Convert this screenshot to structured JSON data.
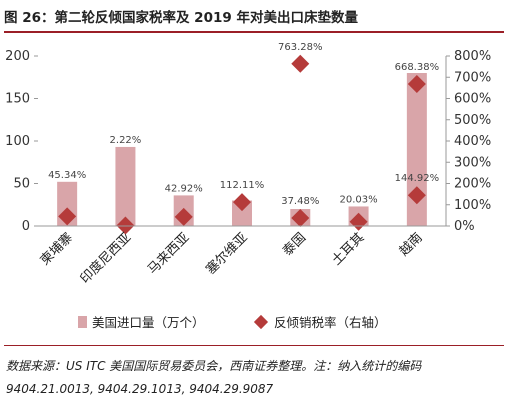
{
  "title": "图 26：第二轮反倾国家税率及 2019 年对美出口床垫数量",
  "chart_data": {
    "type": "bar",
    "categories": [
      "柬埔寨",
      "印度尼西亚",
      "马来西亚",
      "塞尔维亚",
      "泰国",
      "土耳其",
      "越南"
    ],
    "series": [
      {
        "name": "美国进口量（万个）",
        "type": "bar",
        "axis": "left",
        "values": [
          52,
          93,
          36,
          30,
          20,
          23,
          180
        ]
      },
      {
        "name": "反倾销税率（右轴）",
        "type": "scatter",
        "axis": "right",
        "values": [
          45.34,
          2.22,
          42.92,
          112.11,
          37.48,
          20.03,
          668.38
        ]
      }
    ],
    "data_labels": [
      "45.34%",
      "2.22%",
      "42.92%",
      "112.11%",
      "37.48%",
      "20.03%",
      "668.38%"
    ],
    "extra_points": [
      {
        "category": "泰国",
        "value": 763.28,
        "label": "763.28%"
      },
      {
        "category": "越南",
        "value": 144.92,
        "label": "144.92%"
      }
    ],
    "y_left": {
      "ylim": [
        0,
        200
      ],
      "ticks": [
        0,
        50,
        100,
        150,
        200
      ]
    },
    "y_right": {
      "ylim": [
        0,
        800
      ],
      "ticks": [
        "0%",
        "100%",
        "200%",
        "300%",
        "400%",
        "500%",
        "600%",
        "700%",
        "800%"
      ],
      "tick_values": [
        0,
        100,
        200,
        300,
        400,
        500,
        600,
        700,
        800
      ]
    },
    "legend_position": "bottom",
    "grid": false
  },
  "legend": {
    "bar_label": "美国进口量（万个）",
    "marker_label": "反倾销税率（右轴）"
  },
  "source": "数据来源：US ITC 美国国际贸易委员会，西南证券整理。注：纳入统计的编码9404.21.0013, 9404.29.1013, 9404.29.9087",
  "colors": {
    "bar": "#d9a5a9",
    "marker": "#b53b3a",
    "rule": "#9b1f27"
  }
}
